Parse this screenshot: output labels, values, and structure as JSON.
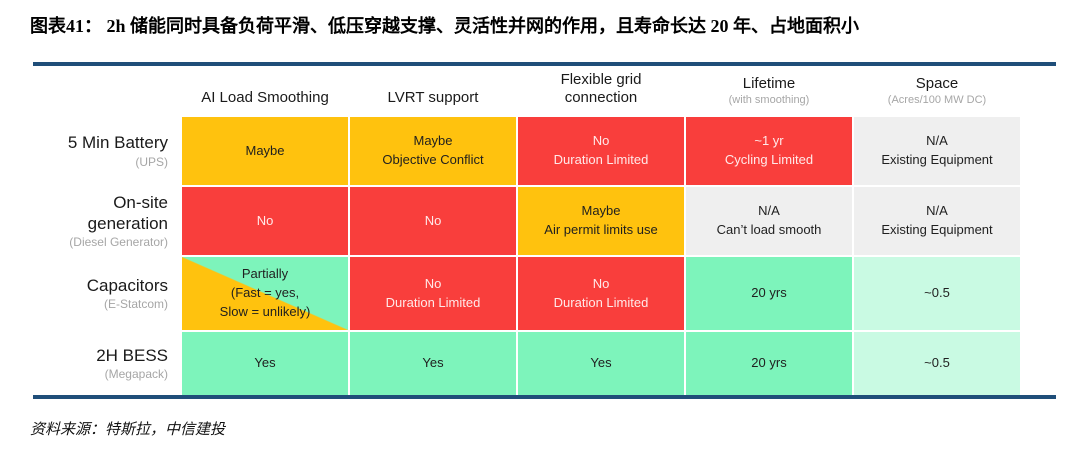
{
  "title": "图表41：  2h 储能同时具备负荷平滑、低压穿越支撑、灵活性并网的作用，且寿命长达 20 年、占地面积小",
  "source": "资料来源：特斯拉，中信建投",
  "colors": {
    "accent_line": "#1F4E79",
    "orange": "#FFC20E",
    "red": "#F93E3C",
    "green": "#7DF4BB",
    "mint": "#C9FAE3",
    "gray": "#EFEFEF",
    "red_text": "#FFE9E9",
    "dark_text": "#1F1F1F",
    "sub_text": "#A6A6A6"
  },
  "chart_data": {
    "type": "table",
    "columns": [
      {
        "lines": [
          "AI Load Smoothing"
        ],
        "sub": ""
      },
      {
        "lines": [
          "LVRT support"
        ],
        "sub": ""
      },
      {
        "lines": [
          "Flexible grid",
          "connection"
        ],
        "sub": ""
      },
      {
        "lines": [
          "Lifetime"
        ],
        "sub": "(with smoothing)"
      },
      {
        "lines": [
          "Space"
        ],
        "sub": "(Acres/100 MW DC)"
      }
    ],
    "rows": [
      {
        "label": "5 Min Battery",
        "sub": "(UPS)",
        "cells": [
          {
            "lines": [
              "Maybe"
            ],
            "bg": "orange"
          },
          {
            "lines": [
              "Maybe",
              "Objective Conflict"
            ],
            "bg": "orange"
          },
          {
            "lines": [
              "No",
              "Duration Limited"
            ],
            "bg": "red"
          },
          {
            "lines": [
              "~1 yr",
              "Cycling Limited"
            ],
            "bg": "red"
          },
          {
            "lines": [
              "N/A",
              "Existing Equipment"
            ],
            "bg": "gray"
          }
        ]
      },
      {
        "label": "On-site generation",
        "sub": "(Diesel Generator)",
        "cells": [
          {
            "lines": [
              "No"
            ],
            "bg": "red"
          },
          {
            "lines": [
              "No"
            ],
            "bg": "red"
          },
          {
            "lines": [
              "Maybe",
              "Air permit limits use"
            ],
            "bg": "orange"
          },
          {
            "lines": [
              "N/A",
              "Can’t load smooth"
            ],
            "bg": "gray"
          },
          {
            "lines": [
              "N/A",
              "Existing Equipment"
            ],
            "bg": "gray"
          }
        ]
      },
      {
        "label": "Capacitors",
        "sub": "(E-Statcom)",
        "cells": [
          {
            "lines": [
              "Partially",
              "(Fast = yes,",
              "Slow = unlikely)"
            ],
            "bg": "diagonal-orange-green"
          },
          {
            "lines": [
              "No",
              "Duration Limited"
            ],
            "bg": "red"
          },
          {
            "lines": [
              "No",
              "Duration Limited"
            ],
            "bg": "red"
          },
          {
            "lines": [
              "20 yrs"
            ],
            "bg": "green"
          },
          {
            "lines": [
              "~0.5"
            ],
            "bg": "mint"
          }
        ]
      },
      {
        "label": "2H BESS",
        "sub": "(Megapack)",
        "cells": [
          {
            "lines": [
              "Yes"
            ],
            "bg": "green"
          },
          {
            "lines": [
              "Yes"
            ],
            "bg": "green"
          },
          {
            "lines": [
              "Yes"
            ],
            "bg": "green"
          },
          {
            "lines": [
              "20 yrs"
            ],
            "bg": "green"
          },
          {
            "lines": [
              "~0.5"
            ],
            "bg": "mint"
          }
        ]
      }
    ]
  }
}
